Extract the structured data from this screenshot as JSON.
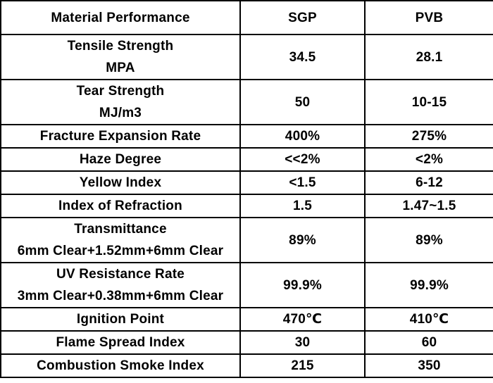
{
  "header": {
    "material_performance": "Material Performance",
    "sgp": "SGP",
    "pvb": "PVB"
  },
  "rows": [
    {
      "label": [
        "Tensile Strength",
        "MPA"
      ],
      "sgp": "34.5",
      "pvb": "28.1"
    },
    {
      "label": [
        "Tear Strength",
        "MJ/m3"
      ],
      "sgp": "50",
      "pvb": "10-15"
    },
    {
      "label": [
        "Fracture Expansion Rate"
      ],
      "sgp": "400%",
      "pvb": "275%"
    },
    {
      "label": [
        "Haze Degree"
      ],
      "sgp": "<<2%",
      "pvb": "<2%"
    },
    {
      "label": [
        "Yellow Index"
      ],
      "sgp": "<1.5",
      "pvb": "6-12"
    },
    {
      "label": [
        "Index of Refraction"
      ],
      "sgp": "1.5",
      "pvb": "1.47~1.5"
    },
    {
      "label": [
        "Transmittance",
        "6mm Clear+1.52mm+6mm Clear"
      ],
      "sgp": "89%",
      "pvb": "89%"
    },
    {
      "label": [
        "UV Resistance Rate",
        "3mm Clear+0.38mm+6mm Clear"
      ],
      "sgp": "99.9%",
      "pvb": "99.9%"
    },
    {
      "label": [
        "Ignition Point"
      ],
      "sgp": "470℃",
      "pvb": "410℃"
    },
    {
      "label": [
        "Flame Spread Index"
      ],
      "sgp": "30",
      "pvb": "60"
    },
    {
      "label": [
        "Combustion Smoke Index"
      ],
      "sgp": "215",
      "pvb": "350"
    }
  ]
}
